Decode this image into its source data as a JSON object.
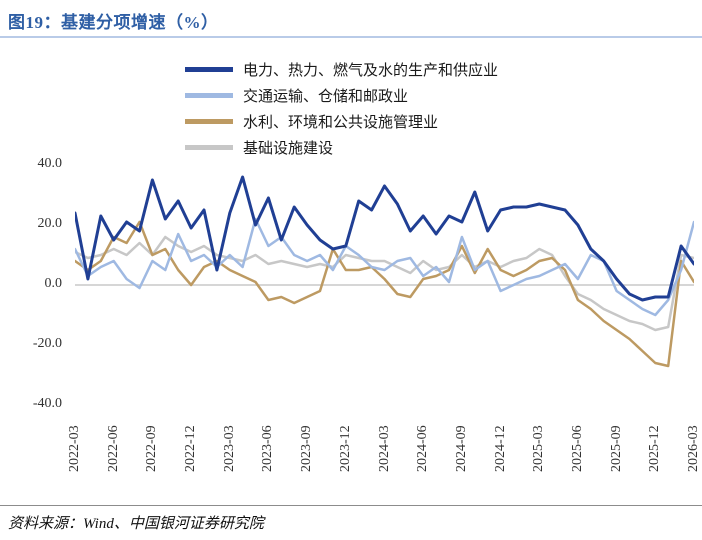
{
  "title": "图19：基建分项增速（%）",
  "source": "资料来源：Wind、中国银河证券研究院",
  "colors": {
    "title": "#2f5fa5",
    "title_rule": "#b9cbe8",
    "zero_line": "#c9c9c9",
    "axis_text": "#333333",
    "series_power": "#203f94",
    "series_transport": "#9fb9e2",
    "series_water": "#bd9a62",
    "series_infra": "#c7c7c7"
  },
  "chart_data": {
    "type": "line",
    "title": "图19：基建分项增速（%）",
    "xlabel": "",
    "ylabel": "",
    "ylim": [
      -40,
      40
    ],
    "ytick_labels": [
      "40.0",
      "20.0",
      "0.0",
      "-20.0",
      "-40.0"
    ],
    "ytick_values": [
      40,
      20,
      0,
      -20,
      -40
    ],
    "grid": "zero-line-only",
    "legend_position": "top-left-stacked",
    "x_is_monthly": true,
    "x_label_every_n_points": 3,
    "x_labels": [
      "2022-03",
      "2022-06",
      "2022-09",
      "2022-12",
      "2023-03",
      "2023-06",
      "2023-09",
      "2023-12",
      "2024-03",
      "2024-06",
      "2024-09",
      "2024-12",
      "2025-03",
      "2025-06",
      "2025-09",
      "2025-12",
      "2026-03"
    ],
    "series": [
      {
        "name": "电力、热力、燃气及水的生产和供应业",
        "color": "#203f94",
        "stroke_width": 3,
        "values": [
          24,
          2,
          23,
          15,
          21,
          18,
          35,
          22,
          28,
          19,
          25,
          5,
          24,
          36,
          20,
          29,
          15,
          26,
          20,
          15,
          12,
          13,
          28,
          25,
          33,
          27,
          18,
          23,
          17,
          23,
          21,
          31,
          18,
          25,
          26,
          26,
          27,
          26,
          25,
          20,
          12,
          8,
          2,
          -3,
          -5,
          -4,
          -4,
          13,
          7
        ]
      },
      {
        "name": "交通运输、仓储和邮政业",
        "color": "#9fb9e2",
        "stroke_width": 2.5,
        "values": [
          12,
          3,
          6,
          8,
          2,
          -1,
          8,
          5,
          17,
          8,
          10,
          6,
          10,
          6,
          22,
          13,
          16,
          10,
          8,
          10,
          5,
          13,
          10,
          6,
          5,
          8,
          9,
          3,
          6,
          1,
          16,
          5,
          8,
          -2,
          0,
          2,
          3,
          5,
          7,
          2,
          10,
          8,
          -2,
          -5,
          -8,
          -10,
          -5,
          5,
          21
        ]
      },
      {
        "name": "水利、环境和公共设施管理业",
        "color": "#bd9a62",
        "stroke_width": 2.5,
        "values": [
          8,
          5,
          8,
          16,
          14,
          21,
          10,
          12,
          5,
          0,
          6,
          8,
          5,
          3,
          1,
          -5,
          -4,
          -6,
          -4,
          -2,
          12,
          5,
          5,
          6,
          2,
          -3,
          -4,
          2,
          3,
          5,
          13,
          4,
          12,
          5,
          3,
          5,
          8,
          9,
          5,
          -5,
          -8,
          -12,
          -15,
          -18,
          -22,
          -26,
          -27,
          8,
          1
        ]
      },
      {
        "name": "基础设施建设",
        "color": "#c7c7c7",
        "stroke_width": 2.5,
        "values": [
          11,
          9,
          10,
          12,
          10,
          14,
          10,
          16,
          13,
          11,
          13,
          10,
          9,
          8,
          10,
          7,
          8,
          7,
          6,
          7,
          6,
          10,
          9,
          8,
          8,
          6,
          4,
          8,
          5,
          6,
          10,
          6,
          8,
          6,
          8,
          9,
          12,
          10,
          3,
          -3,
          -5,
          -8,
          -10,
          -12,
          -13,
          -15,
          -14,
          10,
          9
        ]
      }
    ]
  }
}
